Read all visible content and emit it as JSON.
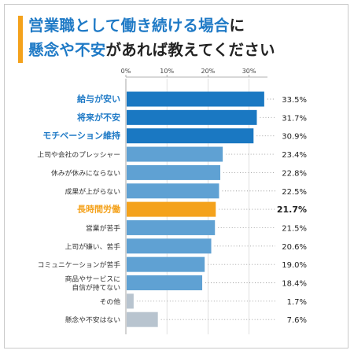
{
  "title": {
    "line1_highlight": "営業職として働き続ける場合",
    "line1_rest": "に",
    "line2_highlight": "懸念や不安",
    "line2_rest": "があれば教えてください"
  },
  "colors": {
    "title_highlight": "#1f7ac6",
    "accent_orange": "#f4a21c",
    "top_bar": "#1a78c2",
    "mid_bar": "#5fa1d3",
    "other_bar": "#b8c4cf",
    "label_blue": "#1f7ac6",
    "label_default": "#333333"
  },
  "chart_data": {
    "type": "bar",
    "orientation": "horizontal",
    "x_ticks": [
      "0%",
      "10%",
      "20%",
      "30%"
    ],
    "x_tick_values": [
      0,
      10,
      20,
      30
    ],
    "xlim": [
      0,
      35
    ],
    "grid": true,
    "categories": [
      "給与が安い",
      "将来が不安",
      "モチベーション維持",
      "上司や会社のプレッシャー",
      "休みが休みにならない",
      "成果が上がらない",
      "長時間労働",
      "営業が苦手",
      "上司が嫌い、苦手",
      "コミュニケーションが苦手",
      "商品やサービスに\n自信が持てない",
      "その他",
      "懸念や不安はない"
    ],
    "values": [
      33.5,
      31.7,
      30.9,
      23.4,
      22.8,
      22.5,
      21.7,
      21.5,
      20.6,
      19.0,
      18.4,
      1.7,
      7.6
    ],
    "value_labels": [
      "33.5%",
      "31.7%",
      "30.9%",
      "23.4%",
      "22.8%",
      "22.5%",
      "21.7%",
      "21.5%",
      "20.6%",
      "19.0%",
      "18.4%",
      "1.7%",
      "7.6%"
    ],
    "bar_styles": [
      "top",
      "top",
      "top",
      "mid",
      "mid",
      "mid",
      "accent",
      "mid",
      "mid",
      "mid",
      "mid",
      "other",
      "other"
    ]
  }
}
